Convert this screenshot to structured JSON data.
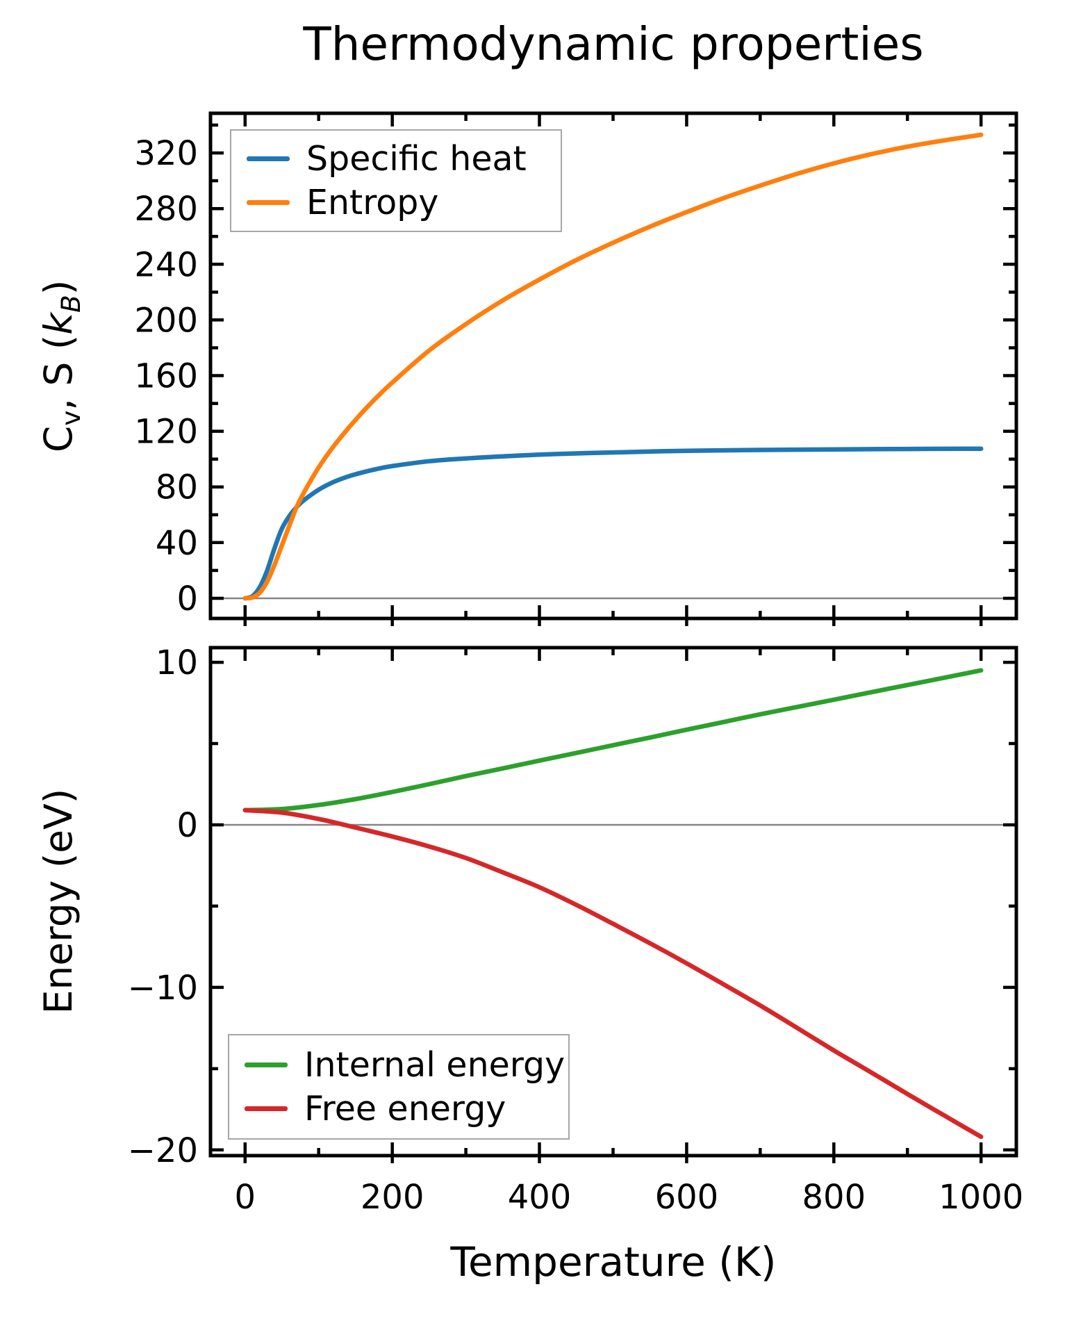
{
  "figure": {
    "title": "Thermodynamic properties",
    "xlabel": "Temperature (K)",
    "ylabel_top_parts": {
      "c": "C",
      "v_sub": "v",
      "mid": ", S (",
      "k": "k",
      "b_sub": "B",
      "close": ")"
    },
    "ylabel_bottom": "Energy (eV)"
  },
  "colors": {
    "spine": "#000000",
    "zero_line": "#848484",
    "legend_border": "#a6a6a6",
    "specific_heat": "#1f77b4",
    "entropy": "#ff7f0e",
    "internal_energy": "#2ca02c",
    "free_energy": "#d62728"
  },
  "chart_data": [
    {
      "type": "line",
      "title": "Thermodynamic properties",
      "xlabel": "",
      "ylabel": "Cv, S (kB)",
      "xlim": [
        -47,
        1048
      ],
      "ylim": [
        -14.5,
        348.5
      ],
      "grid": false,
      "zero_line": true,
      "legend_position": "top-left",
      "x_ticks": {
        "major": [
          0,
          200,
          400,
          600,
          800,
          1000
        ],
        "labels": [
          "0",
          "200",
          "400",
          "600",
          "800",
          "1000"
        ],
        "minor_step": 100,
        "show_labels": false
      },
      "y_ticks": {
        "major": [
          0,
          40,
          80,
          120,
          160,
          200,
          240,
          280,
          320
        ],
        "labels": [
          "0",
          "40",
          "80",
          "120",
          "160",
          "200",
          "240",
          "280",
          "320"
        ],
        "minor_step": 20
      },
      "series": [
        {
          "name": "Specific heat",
          "color": "#1f77b4",
          "x": [
            0,
            10,
            20,
            30,
            40,
            50,
            60,
            70,
            80,
            100,
            120,
            140,
            160,
            180,
            200,
            250,
            300,
            350,
            400,
            450,
            500,
            600,
            700,
            800,
            900,
            1000
          ],
          "y": [
            0,
            1.5,
            8,
            20,
            36,
            50,
            59,
            65.5,
            70.5,
            78,
            83.5,
            87.5,
            90.5,
            93,
            95,
            98.5,
            100.5,
            102,
            103.2,
            104.1,
            104.8,
            106,
            106.6,
            107,
            107.3,
            107.5
          ]
        },
        {
          "name": "Entropy",
          "color": "#ff7f0e",
          "x": [
            0,
            10,
            20,
            30,
            40,
            50,
            60,
            70,
            80,
            100,
            120,
            140,
            160,
            180,
            200,
            250,
            300,
            350,
            400,
            450,
            500,
            550,
            600,
            650,
            700,
            750,
            800,
            850,
            900,
            950,
            1000
          ],
          "y": [
            0,
            0.6,
            4,
            12,
            24,
            38,
            52,
            65.5,
            76,
            94,
            109,
            122,
            134,
            145,
            155,
            178,
            197,
            214,
            229,
            243,
            255.5,
            267,
            277.5,
            287.5,
            296.5,
            305,
            312.5,
            319,
            324.5,
            329,
            333
          ]
        }
      ]
    },
    {
      "type": "line",
      "title": "",
      "xlabel": "Temperature (K)",
      "ylabel": "Energy (eV)",
      "xlim": [
        -47,
        1048
      ],
      "ylim": [
        -20.35,
        10.9
      ],
      "grid": false,
      "zero_line": true,
      "legend_position": "bottom-left",
      "x_ticks": {
        "major": [
          0,
          200,
          400,
          600,
          800,
          1000
        ],
        "labels": [
          "0",
          "200",
          "400",
          "600",
          "800",
          "1000"
        ],
        "minor_step": 100,
        "show_labels": true
      },
      "y_ticks": {
        "major": [
          -20,
          -10,
          0,
          10
        ],
        "labels": [
          "−20",
          "−10",
          "0",
          "10"
        ],
        "minor_step": 5
      },
      "series": [
        {
          "name": "Internal energy",
          "color": "#2ca02c",
          "x": [
            0,
            50,
            100,
            150,
            200,
            250,
            300,
            350,
            400,
            450,
            500,
            550,
            600,
            650,
            700,
            750,
            800,
            850,
            900,
            950,
            1000
          ],
          "y": [
            0.9,
            0.97,
            1.22,
            1.58,
            2.02,
            2.5,
            3.0,
            3.47,
            3.95,
            4.42,
            4.9,
            5.37,
            5.85,
            6.32,
            6.8,
            7.25,
            7.7,
            8.15,
            8.6,
            9.05,
            9.5
          ]
        },
        {
          "name": "Free energy",
          "color": "#d62728",
          "x": [
            0,
            50,
            100,
            150,
            200,
            250,
            300,
            350,
            400,
            450,
            500,
            550,
            600,
            650,
            700,
            750,
            800,
            850,
            900,
            950,
            1000
          ],
          "y": [
            0.9,
            0.75,
            0.36,
            -0.17,
            -0.72,
            -1.33,
            -2.04,
            -2.92,
            -3.84,
            -4.92,
            -6.09,
            -7.28,
            -8.52,
            -9.81,
            -11.11,
            -12.49,
            -13.88,
            -15.21,
            -16.56,
            -17.88,
            -19.19
          ]
        }
      ]
    }
  ]
}
